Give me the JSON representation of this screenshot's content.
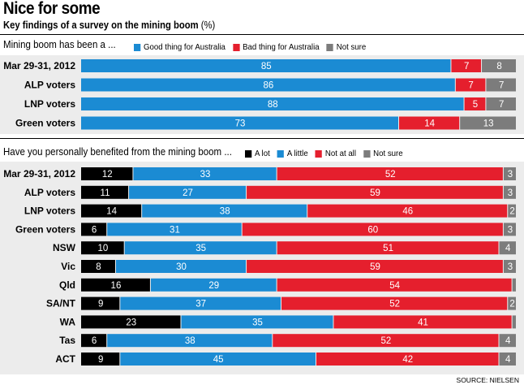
{
  "title": "Nice for some",
  "subtitle_bold": "Key findings of a survey on the mining boom",
  "subtitle_unit": "(%)",
  "source": "SOURCE: NIELSEN",
  "colors": {
    "a_lot": "#000000",
    "good": "#1b8bd3",
    "bad": "#e51f2d",
    "not_sure": "#7c7c7c",
    "background": "#ececec"
  },
  "chart_data": [
    {
      "type": "stacked-bar-horizontal",
      "title": "Mining boom has been a ...",
      "categories": [
        "Mar 29-31, 2012",
        "ALP voters",
        "LNP voters",
        "Green voters"
      ],
      "series": [
        {
          "name": "Good thing for Australia",
          "color": "#1b8bd3",
          "values": [
            85,
            86,
            88,
            73
          ]
        },
        {
          "name": "Bad thing for Australia",
          "color": "#e51f2d",
          "values": [
            7,
            7,
            5,
            14
          ]
        },
        {
          "name": "Not sure",
          "color": "#7c7c7c",
          "values": [
            8,
            7,
            7,
            13
          ]
        }
      ],
      "xlim": [
        0,
        100
      ]
    },
    {
      "type": "stacked-bar-horizontal",
      "title": "Have you personally benefited from the mining boom ...",
      "categories": [
        "Mar 29-31, 2012",
        "ALP voters",
        "LNP voters",
        "Green voters",
        "NSW",
        "Vic",
        "Qld",
        "SA/NT",
        "WA",
        "Tas",
        "ACT"
      ],
      "series": [
        {
          "name": "A lot",
          "color": "#000000",
          "values": [
            12,
            11,
            14,
            6,
            10,
            8,
            16,
            9,
            23,
            6,
            9
          ]
        },
        {
          "name": "A little",
          "color": "#1b8bd3",
          "values": [
            33,
            27,
            38,
            31,
            35,
            30,
            29,
            37,
            35,
            38,
            45
          ]
        },
        {
          "name": "Not at all",
          "color": "#e51f2d",
          "values": [
            52,
            59,
            46,
            60,
            51,
            59,
            54,
            52,
            41,
            52,
            42
          ]
        },
        {
          "name": "Not sure",
          "color": "#7c7c7c",
          "values": [
            3,
            3,
            2,
            3,
            4,
            3,
            1,
            2,
            1,
            4,
            4
          ]
        }
      ],
      "xlim": [
        0,
        100
      ]
    }
  ]
}
